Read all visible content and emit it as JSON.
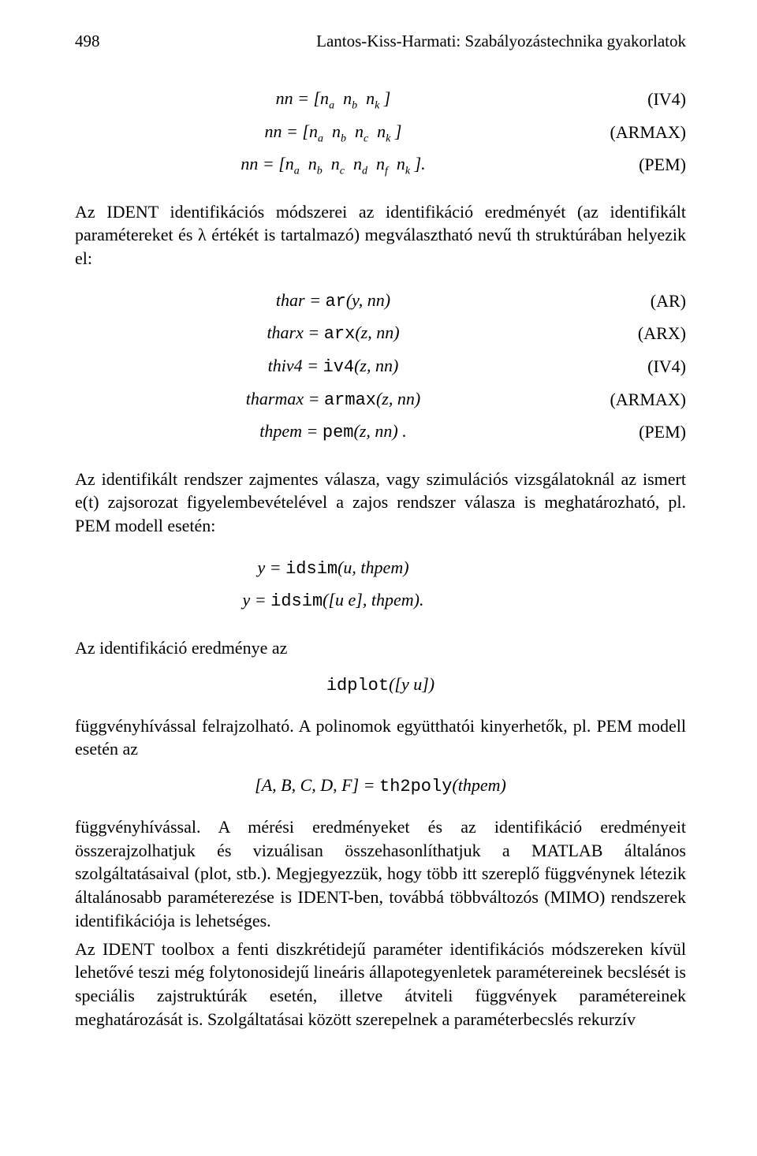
{
  "header": {
    "page_number": "498",
    "title": "Lantos-Kiss-Harmati: Szabályozástechnika gyakorlatok"
  },
  "eq_block_1": {
    "rows": [
      {
        "lhs": "nn = [n",
        "subs": [
          "a",
          "b",
          "k"
        ],
        "close": " ]",
        "tag": "(IV4)"
      },
      {
        "lhs": "nn = [n",
        "subs": [
          "a",
          "b",
          "c",
          "k"
        ],
        "close": " ]",
        "tag": "(ARMAX)"
      },
      {
        "lhs": "nn = [n",
        "subs": [
          "a",
          "b",
          "c",
          "d",
          "f",
          "k"
        ],
        "close": " ].",
        "tag": "(PEM)"
      }
    ]
  },
  "para_1": "Az IDENT identifikációs módszerei az identifikáció eredményét (az identifikált paramétereket és λ értékét is tartalmazó) megválasztható nevű th struktúrában helyezik el:",
  "eq_block_2": {
    "rows": [
      {
        "lhs": "thar = ",
        "fn": "ar",
        "args": "(y, nn)",
        "tag": "(AR)"
      },
      {
        "lhs": "tharx = ",
        "fn": "arx",
        "args": "(z, nn)",
        "tag": "(ARX)"
      },
      {
        "lhs": "thiv4 = ",
        "fn": "iv4",
        "args": "(z, nn)",
        "tag": "(IV4)"
      },
      {
        "lhs": "tharmax = ",
        "fn": "armax",
        "args": "(z, nn)",
        "tag": "(ARMAX)"
      },
      {
        "lhs": "thpem = ",
        "fn": "pem",
        "args": "(z, nn) .",
        "tag": "(PEM)"
      }
    ]
  },
  "para_2": "Az identifikált rendszer zajmentes válasza, vagy szimulációs vizsgálatoknál az ismert e(t) zajsorozat figyelembevételével a zajos rendszer válasza is meghatározható, pl. PEM modell esetén:",
  "eq_block_3": {
    "rows": [
      {
        "lhs": "y = ",
        "fn": "idsim",
        "args": "(u, thpem)"
      },
      {
        "lhs": "y = ",
        "fn": "idsim",
        "args": "([u e], thpem)."
      }
    ]
  },
  "para_3": "Az identifikáció eredménye az",
  "eq_block_4": {
    "fn": "idplot",
    "args": "([y u])"
  },
  "para_4": "függvényhívással felrajzolható. A polinomok együtthatói kinyerhetők, pl. PEM modell esetén az",
  "eq_block_5": {
    "lhs": "[A, B, C, D, F] = ",
    "fn": "th2poly",
    "args": "(thpem)"
  },
  "para_5": "függvényhívással. A mérési eredményeket és az identifikáció eredményeit összerajzolhatjuk és vizuálisan összehasonlíthatjuk a MATLAB általános szolgáltatásaival (plot, stb.). Megjegyezzük, hogy több itt szereplő függvénynek létezik általánosabb paraméterezése is IDENT-ben, továbbá többváltozós (MIMO) rendszerek identifikációja is lehetséges.",
  "para_6": "Az IDENT toolbox a fenti diszkrétidejű paraméter identifikációs módszereken kívül lehetővé teszi még folytonosidejű lineáris állapotegyenletek paramétereinek becslését is speciális zajstruktúrák esetén, illetve átviteli függvények paramétereinek meghatározását is. Szolgáltatásai között szerepelnek a paraméterbecslés rekurzív"
}
